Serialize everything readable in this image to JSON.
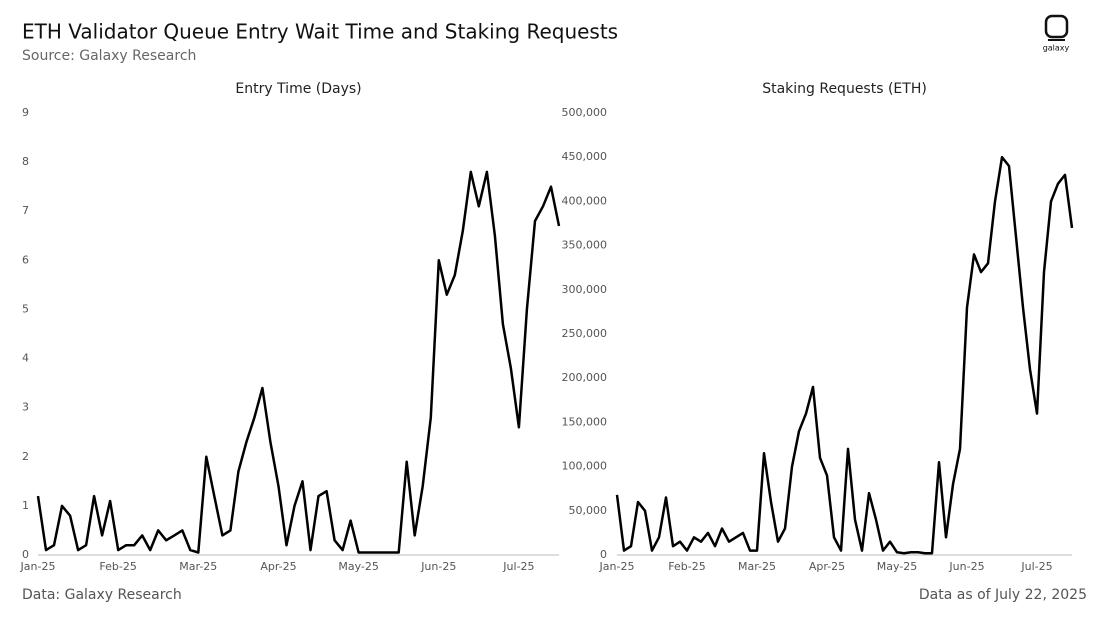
{
  "header": {
    "title": "ETH Validator Queue Entry Wait Time and Staking Requests",
    "source": "Source: Galaxy Research",
    "logo": "galaxy"
  },
  "chart_data": [
    {
      "type": "line",
      "title": "Entry Time (Days)",
      "color": "#000000",
      "categories": [
        "Jan-25",
        null,
        null,
        null,
        null,
        null,
        null,
        null,
        null,
        null,
        "Feb-25",
        null,
        null,
        null,
        null,
        null,
        null,
        null,
        null,
        null,
        "Mar-25",
        null,
        null,
        null,
        null,
        null,
        null,
        null,
        null,
        null,
        "Apr-25",
        null,
        null,
        null,
        null,
        null,
        null,
        null,
        null,
        null,
        "May-25",
        null,
        null,
        null,
        null,
        null,
        null,
        null,
        null,
        null,
        "Jun-25",
        null,
        null,
        null,
        null,
        null,
        null,
        null,
        null,
        null,
        "Jul-25",
        null,
        null,
        null,
        null,
        null
      ],
      "values": [
        1.2,
        0.1,
        0.2,
        1.0,
        0.8,
        0.1,
        0.2,
        1.2,
        0.4,
        1.1,
        0.1,
        0.2,
        0.2,
        0.4,
        0.1,
        0.5,
        0.3,
        0.4,
        0.5,
        0.1,
        0.05,
        2.0,
        1.2,
        0.4,
        0.5,
        1.7,
        2.3,
        2.8,
        3.4,
        2.3,
        1.4,
        0.2,
        1.0,
        1.5,
        0.1,
        1.2,
        1.3,
        0.3,
        0.1,
        0.7,
        0.05,
        0.05,
        0.05,
        0.05,
        0.05,
        0.05,
        1.9,
        0.4,
        1.4,
        2.8,
        6.0,
        5.3,
        5.7,
        6.6,
        7.8,
        7.1,
        7.8,
        6.5,
        4.7,
        3.8,
        2.6,
        5.0,
        6.8,
        7.1,
        7.5,
        6.7
      ],
      "ylim": [
        0,
        9
      ],
      "yticks": [
        0,
        1,
        2,
        3,
        4,
        5,
        6,
        7,
        8,
        9
      ]
    },
    {
      "type": "line",
      "title": "Staking Requests (ETH)",
      "color": "#000000",
      "categories": [
        "Jan-25",
        null,
        null,
        null,
        null,
        null,
        null,
        null,
        null,
        null,
        "Feb-25",
        null,
        null,
        null,
        null,
        null,
        null,
        null,
        null,
        null,
        "Mar-25",
        null,
        null,
        null,
        null,
        null,
        null,
        null,
        null,
        null,
        "Apr-25",
        null,
        null,
        null,
        null,
        null,
        null,
        null,
        null,
        null,
        "May-25",
        null,
        null,
        null,
        null,
        null,
        null,
        null,
        null,
        null,
        "Jun-25",
        null,
        null,
        null,
        null,
        null,
        null,
        null,
        null,
        null,
        "Jul-25",
        null,
        null,
        null,
        null,
        null
      ],
      "values": [
        68000,
        5000,
        10000,
        60000,
        50000,
        5000,
        20000,
        65000,
        10000,
        15000,
        5000,
        20000,
        15000,
        25000,
        10000,
        30000,
        15000,
        20000,
        25000,
        5000,
        5000,
        115000,
        60000,
        15000,
        30000,
        100000,
        140000,
        160000,
        190000,
        110000,
        90000,
        20000,
        5000,
        120000,
        40000,
        5000,
        70000,
        40000,
        5000,
        15000,
        3000,
        2000,
        3000,
        3000,
        2000,
        2000,
        105000,
        20000,
        80000,
        120000,
        280000,
        340000,
        320000,
        330000,
        400000,
        450000,
        440000,
        360000,
        280000,
        210000,
        160000,
        320000,
        400000,
        420000,
        430000,
        370000
      ],
      "ylim": [
        0,
        500000
      ],
      "yticks": [
        0,
        {
          "value": 50000,
          "label": "50,000"
        },
        {
          "value": 100000,
          "label": "100,000"
        },
        {
          "value": 150000,
          "label": "150,000"
        },
        {
          "value": 200000,
          "label": "200,000"
        },
        {
          "value": 250000,
          "label": "250,000"
        },
        {
          "value": 300000,
          "label": "300,000"
        },
        {
          "value": 350000,
          "label": "350,000"
        },
        {
          "value": 400000,
          "label": "400,000"
        },
        {
          "value": 450000,
          "label": "450,000"
        },
        {
          "value": 500000,
          "label": "500,000"
        }
      ]
    }
  ],
  "footer": {
    "left": "Data: Galaxy Research",
    "right": "Data as of July 22, 2025"
  }
}
